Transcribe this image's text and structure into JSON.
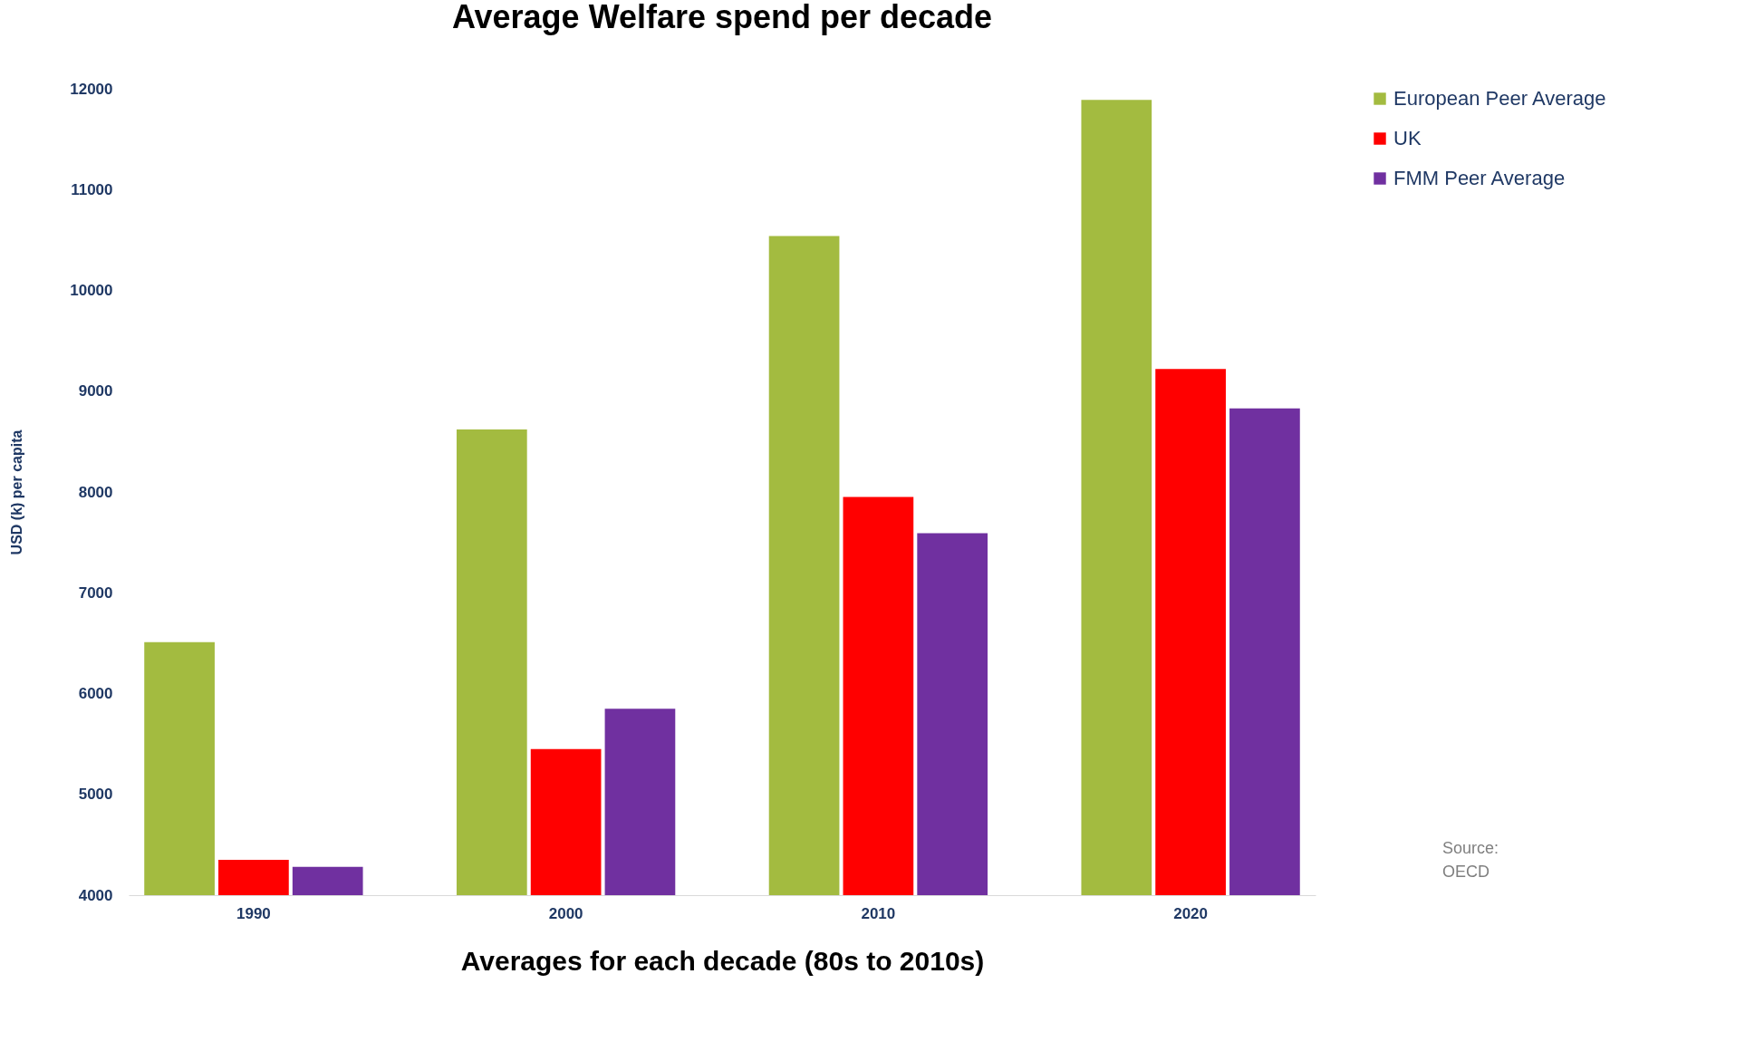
{
  "chart_data": {
    "type": "bar",
    "title": "Average Welfare spend per decade",
    "xlabel": "Averages for each decade (80s to 2010s)",
    "ylabel": "USD (k) per capita",
    "categories": [
      "1990",
      "2000",
      "2010",
      "2020"
    ],
    "series": [
      {
        "name": "European Peer Average",
        "color": "#a3bb40",
        "values": [
          6510,
          8620,
          10540,
          11890
        ]
      },
      {
        "name": "UK",
        "color": "#ff0000",
        "values": [
          4350,
          5450,
          7950,
          9220
        ]
      },
      {
        "name": "FMM Peer Average",
        "color": "#7030a0",
        "values": [
          4280,
          5850,
          7590,
          8830
        ]
      }
    ],
    "ylim": [
      4000,
      12000
    ],
    "yticks": [
      4000,
      5000,
      6000,
      7000,
      8000,
      9000,
      10000,
      11000,
      12000
    ],
    "grid": false,
    "legend": "top right",
    "annotations": [
      "Source:\nOECD"
    ]
  }
}
